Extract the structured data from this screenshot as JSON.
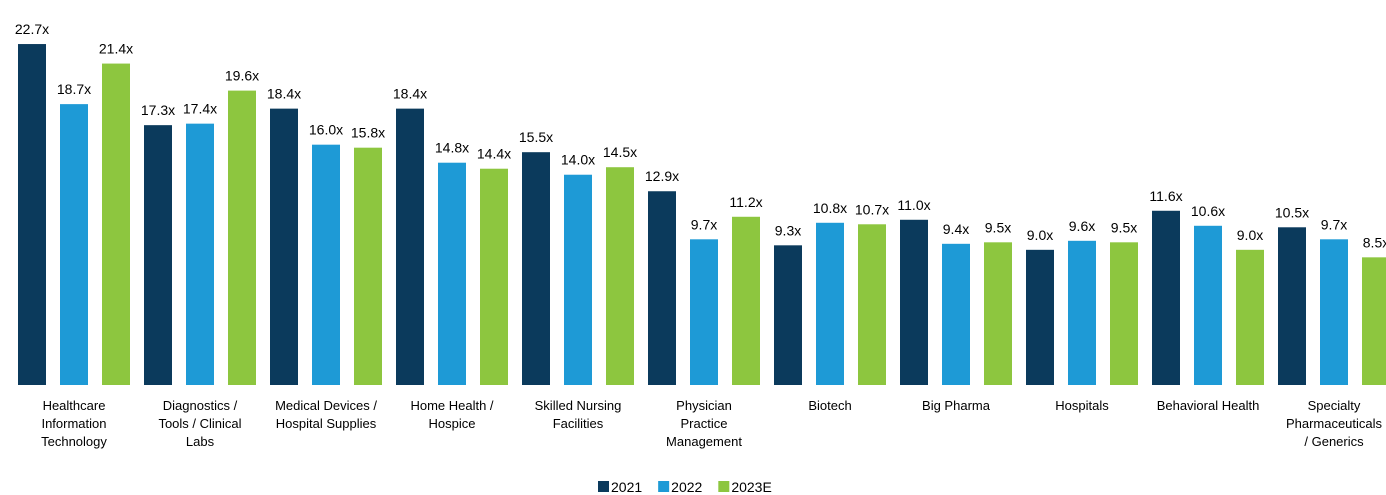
{
  "chart_data": {
    "type": "bar",
    "categories": [
      "Healthcare\nInformation\nTechnology",
      "Diagnostics /\nTools / Clinical\nLabs",
      "Medical Devices /\nHospital Supplies",
      "Home Health /\nHospice",
      "Skilled Nursing\nFacilities",
      "Physician\nPractice\nManagement",
      "Biotech",
      "Big Pharma",
      "Hospitals",
      "Behavioral Health",
      "Specialty\nPharmaceuticals\n/ Generics"
    ],
    "series": [
      {
        "name": "2021",
        "color": "#0b3a5c",
        "values": [
          22.7,
          17.3,
          18.4,
          18.4,
          15.5,
          12.9,
          9.3,
          11.0,
          9.0,
          11.6,
          10.5
        ],
        "value_labels": [
          "22.7x",
          "17.3x",
          "18.4x",
          "18.4x",
          "15.5x",
          "12.9x",
          "9.3x",
          "11.0x",
          "9.0x",
          "11.6x",
          "10.5x"
        ]
      },
      {
        "name": "2022",
        "color": "#1e9ad6",
        "values": [
          18.7,
          17.4,
          16.0,
          14.8,
          14.0,
          9.7,
          10.8,
          9.4,
          9.6,
          10.6,
          9.7
        ],
        "value_labels": [
          "18.7x",
          "17.4x",
          "16.0x",
          "14.8x",
          "14.0x",
          "9.7x",
          "10.8x",
          "9.4x",
          "9.6x",
          "10.6x",
          "9.7x"
        ]
      },
      {
        "name": "2023E",
        "color": "#8dc63f",
        "values": [
          21.4,
          19.6,
          15.8,
          14.4,
          14.5,
          11.2,
          10.7,
          9.5,
          9.5,
          9.0,
          8.5
        ],
        "value_labels": [
          "21.4x",
          "19.6x",
          "15.8x",
          "14.4x",
          "14.5x",
          "11.2x",
          "10.7x",
          "9.5x",
          "9.5x",
          "9.0x",
          "8.5x"
        ]
      }
    ],
    "legend": "bottom"
  }
}
